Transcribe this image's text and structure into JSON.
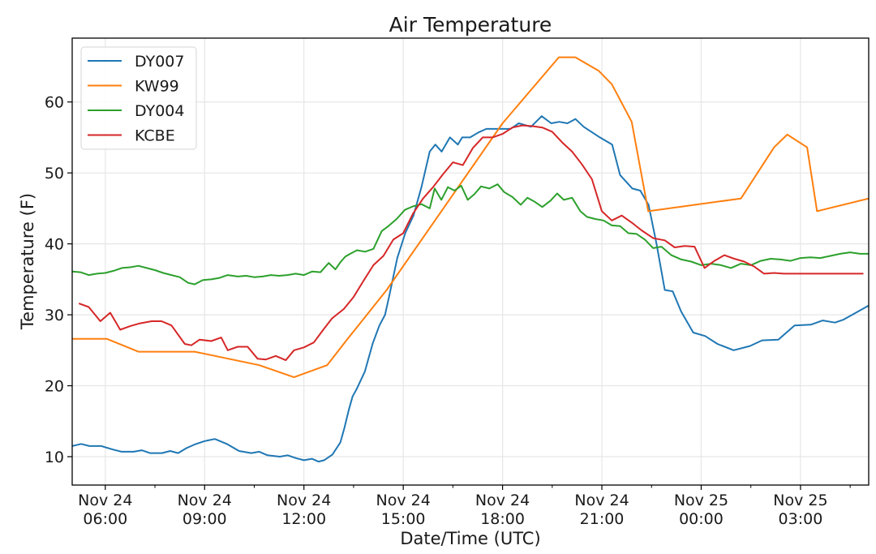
{
  "chart_data": {
    "type": "line",
    "title": "Air Temperature",
    "xlabel": "Date/Time (UTC)",
    "ylabel": "Temperature (F)",
    "x_units": "hours since Nov 24 00:00 UTC",
    "xlim": [
      5.0,
      29.06
    ],
    "ylim": [
      6.0,
      69.0
    ],
    "grid": true,
    "legend_position": "top-left",
    "y_ticks": [
      10,
      20,
      30,
      40,
      50,
      60
    ],
    "x_ticks": [
      {
        "x": 6,
        "line1": "Nov 24",
        "line2": "06:00"
      },
      {
        "x": 9,
        "line1": "Nov 24",
        "line2": "09:00"
      },
      {
        "x": 12,
        "line1": "Nov 24",
        "line2": "12:00"
      },
      {
        "x": 15,
        "line1": "Nov 24",
        "line2": "15:00"
      },
      {
        "x": 18,
        "line1": "Nov 24",
        "line2": "18:00"
      },
      {
        "x": 21,
        "line1": "Nov 24",
        "line2": "21:00"
      },
      {
        "x": 24,
        "line1": "Nov 25",
        "line2": "00:00"
      },
      {
        "x": 27,
        "line1": "Nov 25",
        "line2": "03:00"
      }
    ],
    "x_minor_ticks": [
      7.5,
      10.5,
      13.5,
      16.5,
      19.5,
      22.5,
      25.5,
      28.5
    ],
    "series": [
      {
        "name": "DY007",
        "color": "#1f77b4",
        "x": [
          5.0,
          5.27,
          5.52,
          5.88,
          6.24,
          6.49,
          6.86,
          7.1,
          7.35,
          7.71,
          7.96,
          8.2,
          8.45,
          8.69,
          9.0,
          9.31,
          9.67,
          10.04,
          10.41,
          10.65,
          10.9,
          11.27,
          11.51,
          11.76,
          12.0,
          12.24,
          12.44,
          12.61,
          12.86,
          13.1,
          13.22,
          13.35,
          13.47,
          13.59,
          13.84,
          14.08,
          14.28,
          14.45,
          14.57,
          14.82,
          15.06,
          15.31,
          15.55,
          15.8,
          15.97,
          16.16,
          16.41,
          16.65,
          16.78,
          17.02,
          17.27,
          17.51,
          17.88,
          18.24,
          18.49,
          18.86,
          19.18,
          19.47,
          19.71,
          19.96,
          20.2,
          20.45,
          20.94,
          21.31,
          21.55,
          21.92,
          22.16,
          22.41,
          22.65,
          22.9,
          23.14,
          23.39,
          23.76,
          24.12,
          24.49,
          24.98,
          25.47,
          25.84,
          26.33,
          26.82,
          27.31,
          27.67,
          28.04,
          28.29,
          29.06
        ],
        "y": [
          11.5,
          11.8,
          11.5,
          11.5,
          11.0,
          10.7,
          10.7,
          10.9,
          10.5,
          10.5,
          10.8,
          10.5,
          11.2,
          11.7,
          12.2,
          12.5,
          11.8,
          10.8,
          10.5,
          10.7,
          10.2,
          10.0,
          10.2,
          9.8,
          9.5,
          9.7,
          9.3,
          9.5,
          10.3,
          12.0,
          14.0,
          16.5,
          18.5,
          19.5,
          22.0,
          26.0,
          28.5,
          30.0,
          32.5,
          38.0,
          41.5,
          44.0,
          48.0,
          53.0,
          54.0,
          53.0,
          55.0,
          54.0,
          55.0,
          55.0,
          55.7,
          56.2,
          56.2,
          56.2,
          57.0,
          56.5,
          58.0,
          57.0,
          57.2,
          57.0,
          57.6,
          56.5,
          55.0,
          54.0,
          49.7,
          47.8,
          47.5,
          45.5,
          40.0,
          33.5,
          33.3,
          30.5,
          27.5,
          27.0,
          25.9,
          25.0,
          25.6,
          26.4,
          26.5,
          28.5,
          28.6,
          29.2,
          28.9,
          29.3,
          31.3
        ]
      },
      {
        "name": "KW99",
        "color": "#ff7f0e",
        "x": [
          5.0,
          6.05,
          7.0,
          8.7,
          10.65,
          11.7,
          12.7,
          13.3,
          13.9,
          14.5,
          18.0,
          19.7,
          20.2,
          20.9,
          21.3,
          21.9,
          22.4,
          25.2,
          26.2,
          26.6,
          27.2,
          27.5,
          29.06
        ],
        "y": [
          26.6,
          26.6,
          24.8,
          24.8,
          22.9,
          21.2,
          22.9,
          26.5,
          30.0,
          33.5,
          57.0,
          66.3,
          66.3,
          64.4,
          62.5,
          57.2,
          44.6,
          46.4,
          53.6,
          55.4,
          53.6,
          44.6,
          46.4
        ]
      },
      {
        "name": "DY004",
        "color": "#2ca02c",
        "x": [
          5.0,
          5.25,
          5.5,
          5.75,
          6.0,
          6.25,
          6.5,
          6.75,
          7.0,
          7.25,
          7.5,
          7.75,
          8.0,
          8.25,
          8.5,
          8.7,
          8.95,
          9.2,
          9.45,
          9.7,
          10.0,
          10.25,
          10.5,
          10.75,
          11.0,
          11.25,
          11.5,
          11.75,
          12.0,
          12.25,
          12.5,
          12.75,
          12.95,
          13.1,
          13.25,
          13.4,
          13.6,
          13.85,
          14.1,
          14.35,
          14.55,
          14.8,
          15.05,
          15.3,
          15.55,
          15.8,
          15.95,
          16.15,
          16.35,
          16.55,
          16.75,
          16.95,
          17.15,
          17.35,
          17.6,
          17.85,
          18.05,
          18.3,
          18.55,
          18.75,
          18.95,
          19.2,
          19.45,
          19.65,
          19.85,
          20.1,
          20.35,
          20.55,
          20.8,
          21.05,
          21.3,
          21.55,
          21.8,
          22.05,
          22.3,
          22.55,
          22.8,
          23.1,
          23.4,
          23.7,
          24.0,
          24.3,
          24.6,
          24.9,
          25.2,
          25.5,
          25.8,
          26.1,
          26.4,
          26.7,
          27.0,
          27.3,
          27.6,
          27.9,
          28.2,
          28.5,
          28.8,
          29.06
        ],
        "y": [
          36.1,
          36.0,
          35.6,
          35.8,
          35.9,
          36.2,
          36.6,
          36.7,
          36.9,
          36.6,
          36.3,
          35.9,
          35.6,
          35.3,
          34.5,
          34.3,
          34.9,
          35.0,
          35.2,
          35.6,
          35.4,
          35.5,
          35.3,
          35.4,
          35.6,
          35.5,
          35.6,
          35.8,
          35.6,
          36.1,
          36.0,
          37.3,
          36.4,
          37.4,
          38.2,
          38.6,
          39.1,
          38.9,
          39.3,
          41.8,
          42.5,
          43.5,
          44.8,
          45.3,
          45.6,
          45.0,
          47.8,
          46.2,
          48.0,
          47.5,
          48.2,
          46.2,
          47.0,
          48.1,
          47.8,
          48.4,
          47.3,
          46.6,
          45.5,
          46.5,
          46.0,
          45.2,
          46.1,
          47.1,
          46.2,
          46.5,
          44.6,
          43.8,
          43.5,
          43.3,
          42.6,
          42.5,
          41.5,
          41.4,
          40.6,
          39.4,
          39.6,
          38.4,
          37.8,
          37.5,
          37.0,
          37.2,
          37.0,
          36.6,
          37.2,
          37.0,
          37.6,
          37.9,
          37.8,
          37.6,
          38.0,
          38.1,
          38.0,
          38.3,
          38.6,
          38.8,
          38.6,
          38.6
        ]
      },
      {
        "name": "KCBE",
        "color": "#d62728",
        "x": [
          5.2,
          5.5,
          5.85,
          6.15,
          6.45,
          6.75,
          7.05,
          7.4,
          7.7,
          8.0,
          8.4,
          8.6,
          8.85,
          9.2,
          9.5,
          9.7,
          10.0,
          10.3,
          10.6,
          10.85,
          11.15,
          11.45,
          11.7,
          12.0,
          12.3,
          12.6,
          12.85,
          13.2,
          13.5,
          13.8,
          14.1,
          14.4,
          14.7,
          15.0,
          15.3,
          15.6,
          15.9,
          16.2,
          16.5,
          16.8,
          17.1,
          17.4,
          17.7,
          18.0,
          18.3,
          18.6,
          18.9,
          19.2,
          19.5,
          19.8,
          20.1,
          20.4,
          20.7,
          21.0,
          21.3,
          21.6,
          21.9,
          22.2,
          22.55,
          22.9,
          23.2,
          23.5,
          23.8,
          24.1,
          24.4,
          24.7,
          25.0,
          25.3,
          25.6,
          25.9,
          26.2,
          26.5,
          26.8,
          27.1,
          27.4,
          27.7,
          28.0,
          28.3,
          28.6,
          28.9
        ],
        "y": [
          31.6,
          31.1,
          29.1,
          30.3,
          27.9,
          28.4,
          28.8,
          29.1,
          29.1,
          28.5,
          25.9,
          25.7,
          26.5,
          26.3,
          26.8,
          25.0,
          25.5,
          25.5,
          23.8,
          23.7,
          24.2,
          23.6,
          25.0,
          25.4,
          26.1,
          28.0,
          29.5,
          30.8,
          32.5,
          34.8,
          37.0,
          38.3,
          40.6,
          41.5,
          44.3,
          46.4,
          48.0,
          49.8,
          51.5,
          51.1,
          53.5,
          55.0,
          55.0,
          55.5,
          56.4,
          56.7,
          56.6,
          56.4,
          55.8,
          54.3,
          53.0,
          51.2,
          49.1,
          44.6,
          43.3,
          44.0,
          43.0,
          41.9,
          40.8,
          40.5,
          39.5,
          39.7,
          39.6,
          36.6,
          37.6,
          38.4,
          37.9,
          37.5,
          36.8,
          35.8,
          35.9,
          35.8,
          35.8,
          35.8,
          35.8,
          35.8,
          35.8,
          35.8,
          35.8,
          35.8
        ]
      }
    ]
  }
}
